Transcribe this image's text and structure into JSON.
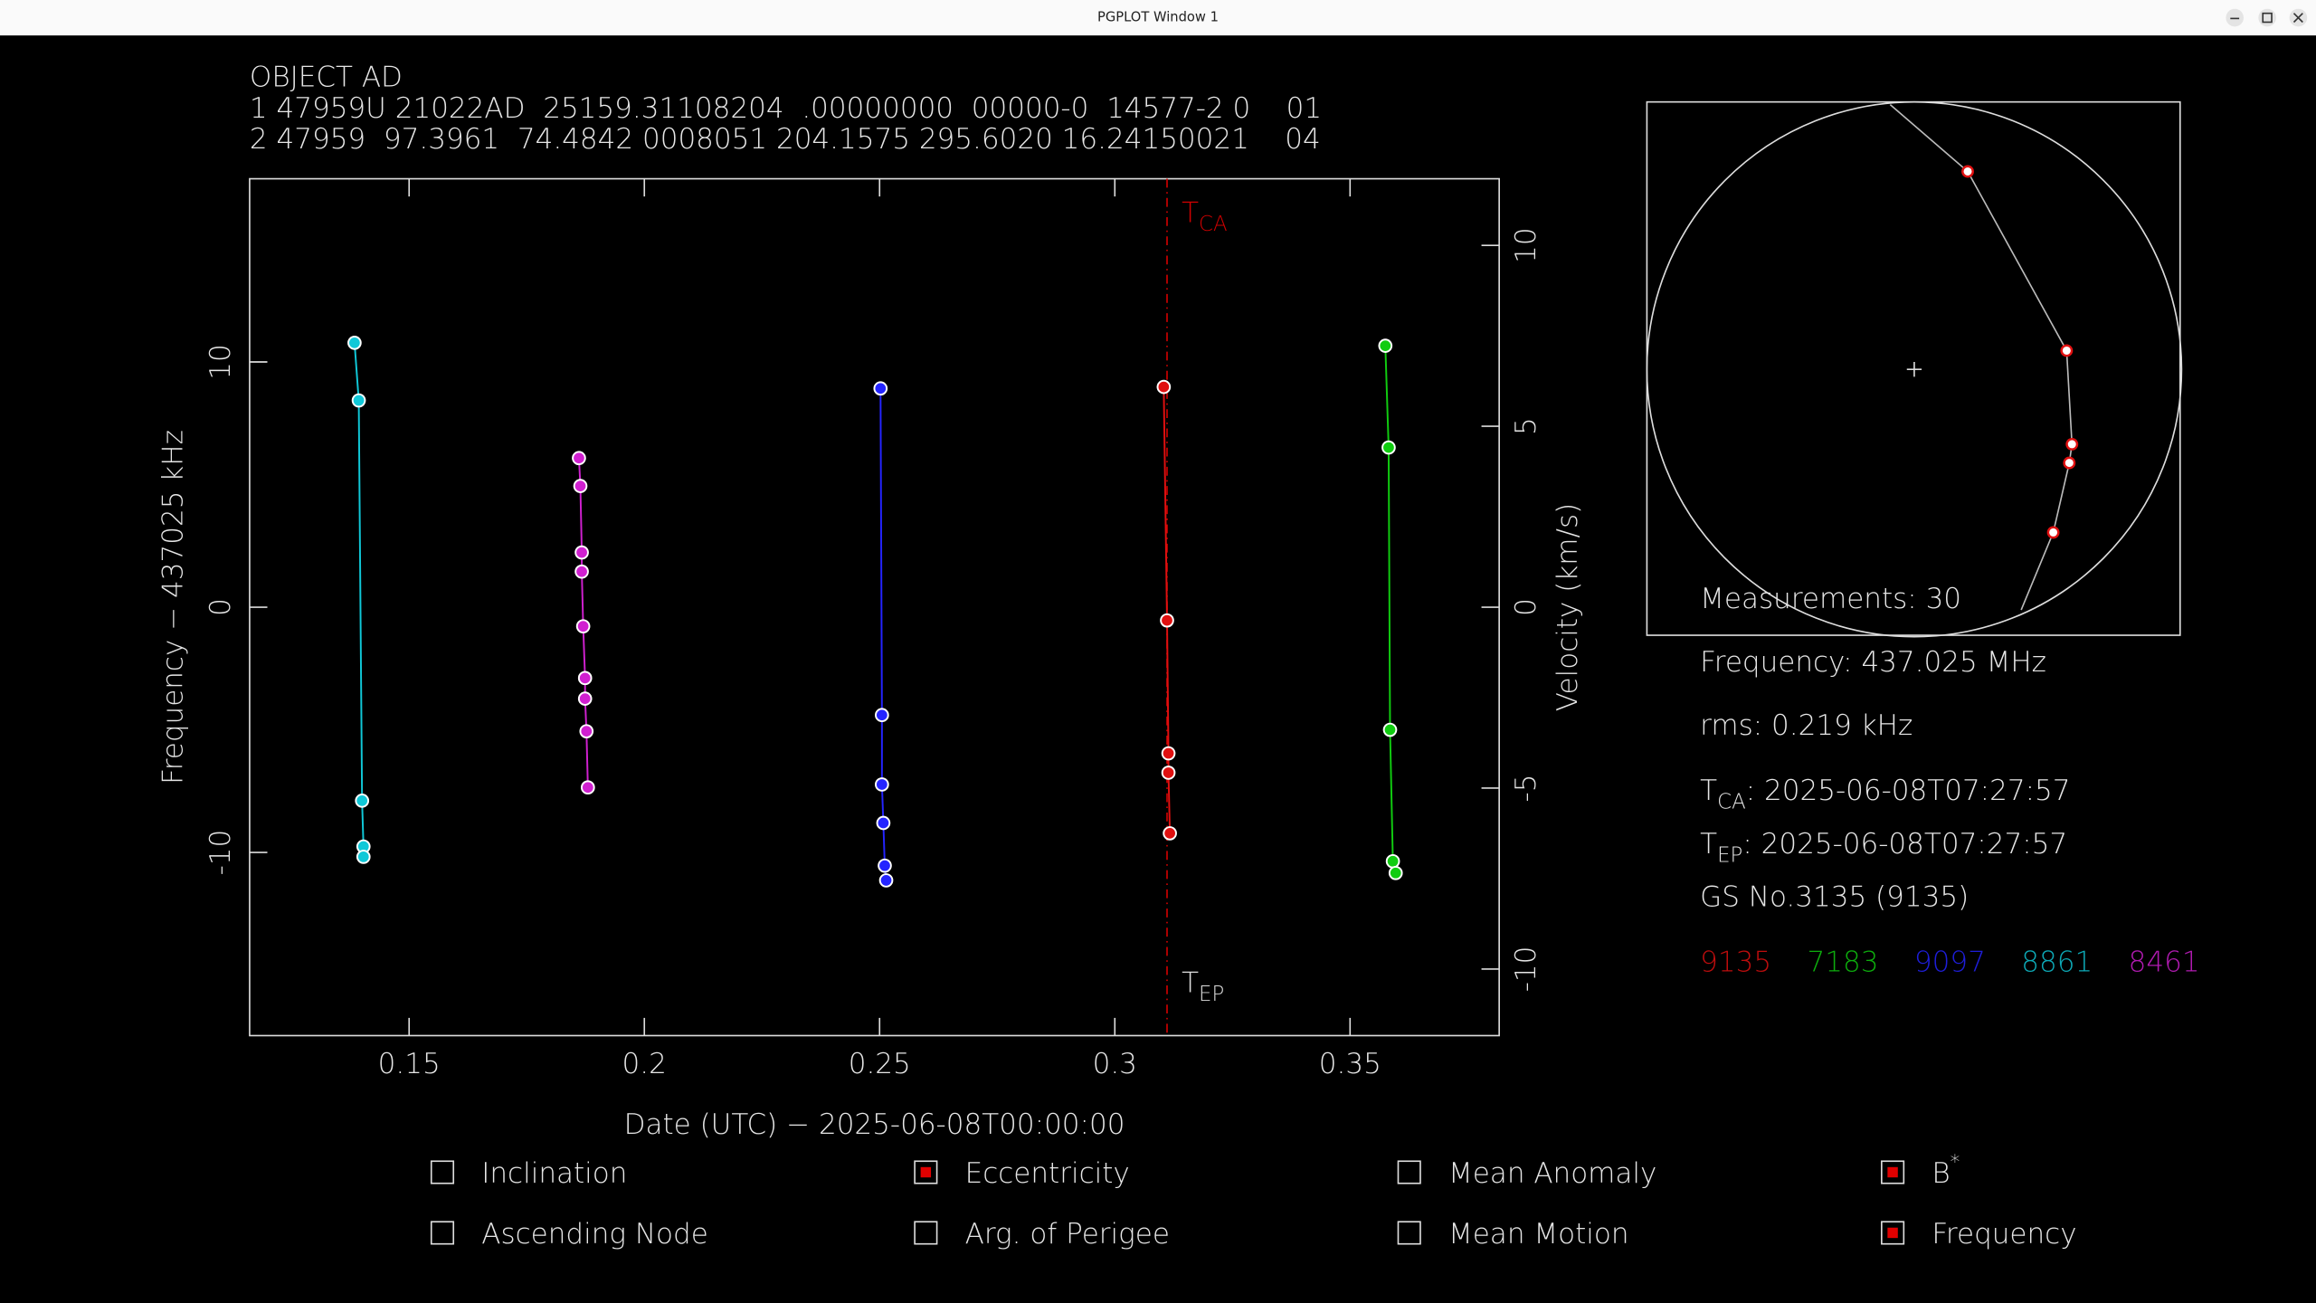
{
  "window": {
    "title": "PGPLOT Window 1"
  },
  "header": {
    "lines": [
      "OBJECT AD",
      "1 47959U 21022AD  25159.31108204  .00000000  00000-0  14577-2 0    01",
      "2 47959  97.3961  74.4842 0008051 204.1575 295.6020 16.24150021    04"
    ]
  },
  "chart_data": {
    "type": "scatter",
    "x_label": "Date (UTC) − 2025-06-08T00:00:00",
    "y_label": "Frequency − 437025 kHz",
    "y2_label": "Velocity (km/s)",
    "xlim": [
      0.1161,
      0.3817
    ],
    "xticks": [
      0.15,
      0.2,
      0.25,
      0.3,
      0.35
    ],
    "ylim": [
      -17.47,
      17.47
    ],
    "yticks": [
      -10,
      0,
      10
    ],
    "y2lim": [
      -11.84,
      11.84
    ],
    "y2ticks": [
      -10,
      -5,
      0,
      5,
      10
    ],
    "tca_x": 0.3111,
    "tca_label": {
      "main": "T",
      "sub": "CA"
    },
    "tep_label": {
      "main": "T",
      "sub": "EP"
    },
    "series": [
      {
        "name": "9135",
        "color": "#e01010",
        "x": [
          0.3104,
          0.3111,
          0.3114,
          0.3114,
          0.3117
        ],
        "values": [
          8.98,
          -0.54,
          -5.96,
          -6.75,
          -9.22
        ]
      },
      {
        "name": "7183",
        "color": "#10cc10",
        "x": [
          0.3575,
          0.3582,
          0.3585,
          0.3591,
          0.3597
        ],
        "values": [
          10.66,
          6.51,
          -5.0,
          -10.36,
          -10.84
        ]
      },
      {
        "name": "9097",
        "color": "#2424ff",
        "x": [
          0.2502,
          0.2505,
          0.2505,
          0.2508,
          0.2511,
          0.2514
        ],
        "values": [
          8.92,
          -4.4,
          -7.23,
          -8.8,
          -10.54,
          -11.14
        ]
      },
      {
        "name": "8861",
        "color": "#10c8d8",
        "x": [
          0.1384,
          0.1393,
          0.14,
          0.1403,
          0.1403
        ],
        "values": [
          10.78,
          8.43,
          -7.89,
          -9.76,
          -10.18
        ]
      },
      {
        "name": "8461",
        "color": "#d020d0",
        "x": [
          0.1861,
          0.1864,
          0.1867,
          0.1867,
          0.187,
          0.1874,
          0.1874,
          0.1877,
          0.188
        ],
        "values": [
          6.08,
          4.94,
          2.23,
          1.45,
          -0.78,
          -2.89,
          -3.73,
          -5.06,
          -7.35
        ]
      }
    ]
  },
  "skyplot": {
    "lim": [
      -1,
      1
    ],
    "track": {
      "x": [
        -0.09,
        0.2,
        0.57,
        0.59,
        0.58,
        0.52,
        0.4
      ],
      "y": [
        0.99,
        0.74,
        0.07,
        -0.28,
        -0.35,
        -0.61,
        -0.9
      ]
    },
    "points": {
      "x": [
        0.2,
        0.57,
        0.59,
        0.58,
        0.52
      ],
      "y": [
        0.74,
        0.07,
        -0.28,
        -0.35,
        -0.61
      ]
    }
  },
  "info": {
    "measurements": "Measurements: 30",
    "frequency": "Frequency: 437.025 MHz",
    "rms": "rms: 0.219 kHz",
    "tca": {
      "main": "T",
      "sub": "CA",
      "text": ": 2025-06-08T07:27:57"
    },
    "tep": {
      "main": "T",
      "sub": "EP",
      "text": ": 2025-06-08T07:27:57"
    },
    "station": "GS No.3135 (9135)"
  },
  "options": [
    {
      "label": "Inclination",
      "checked": false
    },
    {
      "label": "Eccentricity",
      "checked": true
    },
    {
      "label": "Mean Anomaly",
      "checked": false
    },
    {
      "label": "B",
      "sup": "*",
      "checked": true
    },
    {
      "label": "Ascending Node",
      "checked": false
    },
    {
      "label": "Arg. of Perigee",
      "checked": false
    },
    {
      "label": "Mean Motion",
      "checked": false
    },
    {
      "label": "Frequency",
      "checked": true
    }
  ]
}
